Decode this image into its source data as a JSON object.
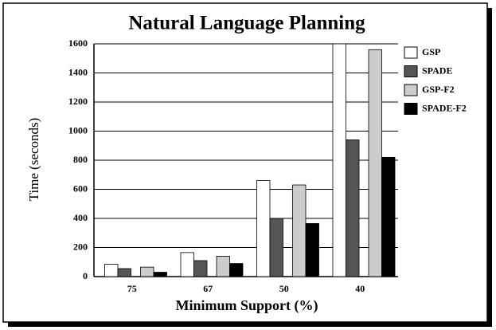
{
  "chart_data": {
    "type": "bar",
    "title": "Natural Language Planning",
    "x_label": "Minimum Support (%)",
    "y_label": "Time (seconds)",
    "categories": [
      "75",
      "67",
      "50",
      "40"
    ],
    "series": [
      {
        "name": "GSP",
        "color": "#ffffff",
        "values": [
          85,
          165,
          660,
          1600
        ]
      },
      {
        "name": "SPADE",
        "color": "#555555",
        "values": [
          55,
          110,
          400,
          940
        ]
      },
      {
        "name": "GSP-F2",
        "color": "#cccccc",
        "values": [
          65,
          140,
          630,
          1560
        ]
      },
      {
        "name": "SPADE-F2",
        "color": "#000000",
        "values": [
          30,
          90,
          365,
          820
        ]
      }
    ],
    "ylim": [
      0,
      1600
    ],
    "yticks": [
      0,
      200,
      400,
      600,
      800,
      1000,
      1200,
      1400,
      1600
    ],
    "grid": true,
    "legend": "right"
  }
}
